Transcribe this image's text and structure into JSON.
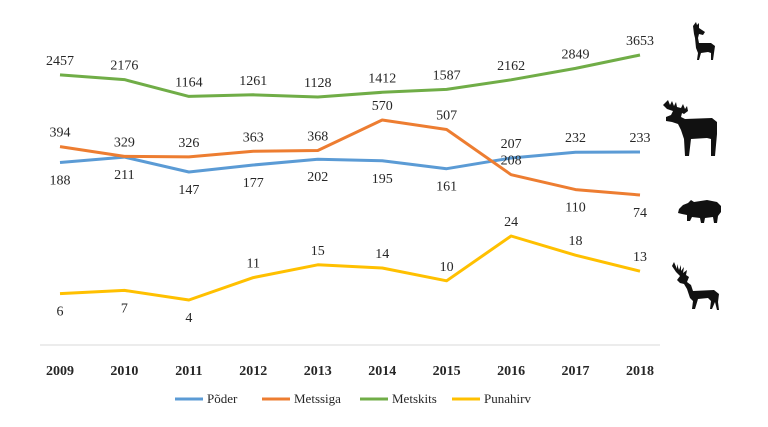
{
  "chart_data": {
    "type": "line",
    "x": [
      "2009",
      "2010",
      "2011",
      "2012",
      "2013",
      "2014",
      "2015",
      "2016",
      "2017",
      "2018"
    ],
    "legend_position": "bottom",
    "grid": false,
    "series": [
      {
        "name": "Põder",
        "color": "#5b9bd5",
        "icon": "moose-icon",
        "values": [
          188,
          211,
          147,
          177,
          202,
          195,
          161,
          207,
          232,
          233
        ]
      },
      {
        "name": "Metssiga",
        "color": "#ed7d31",
        "icon": "wild-boar-icon",
        "values": [
          394,
          329,
          326,
          363,
          368,
          570,
          507,
          208,
          110,
          74
        ]
      },
      {
        "name": "Metskits",
        "color": "#70ad47",
        "icon": "roe-deer-icon",
        "values": [
          2457,
          2176,
          1164,
          1261,
          1128,
          1412,
          1587,
          2162,
          2849,
          3653
        ]
      },
      {
        "name": "Punahirv",
        "color": "#ffc000",
        "icon": "red-deer-icon",
        "values": [
          6,
          7,
          4,
          11,
          15,
          14,
          10,
          24,
          18,
          13
        ]
      }
    ]
  }
}
